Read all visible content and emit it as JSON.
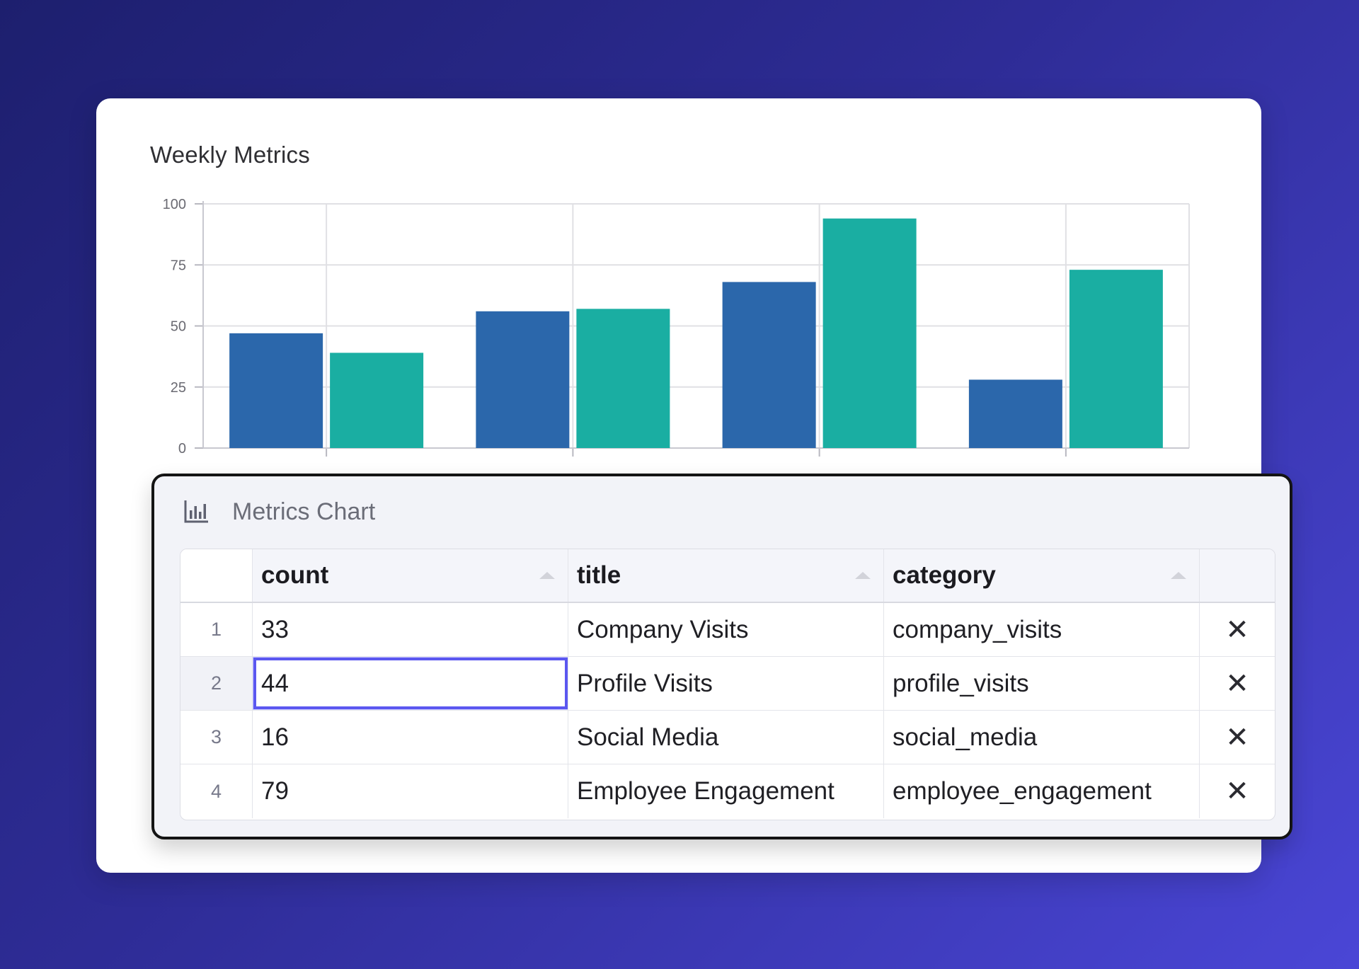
{
  "card": {
    "chart_title": "Weekly Metrics"
  },
  "chart_data": {
    "type": "bar",
    "title": "Weekly Metrics",
    "categories": [
      "",
      "",
      "",
      ""
    ],
    "series": [
      {
        "values": [
          47,
          56,
          68,
          28
        ],
        "color": "#2b67ab"
      },
      {
        "values": [
          39,
          57,
          94,
          73
        ],
        "color": "#1aaea2"
      }
    ],
    "ylim": [
      0,
      100
    ],
    "yticks": [
      0,
      25,
      50,
      75,
      100
    ],
    "grid": true
  },
  "panel": {
    "title": "Metrics Chart",
    "icon": "bar-chart-icon",
    "columns": [
      "count",
      "title",
      "category"
    ],
    "rows": [
      {
        "index": "1",
        "count": "33",
        "title": "Company Visits",
        "category": "company_visits"
      },
      {
        "index": "2",
        "count": "44",
        "title": "Profile Visits",
        "category": "profile_visits"
      },
      {
        "index": "3",
        "count": "16",
        "title": "Social Media",
        "category": "social_media"
      },
      {
        "index": "4",
        "count": "79",
        "title": "Employee Engagement",
        "category": "employee_engagement"
      }
    ],
    "delete_glyph": "✕",
    "selected_row": 1
  }
}
